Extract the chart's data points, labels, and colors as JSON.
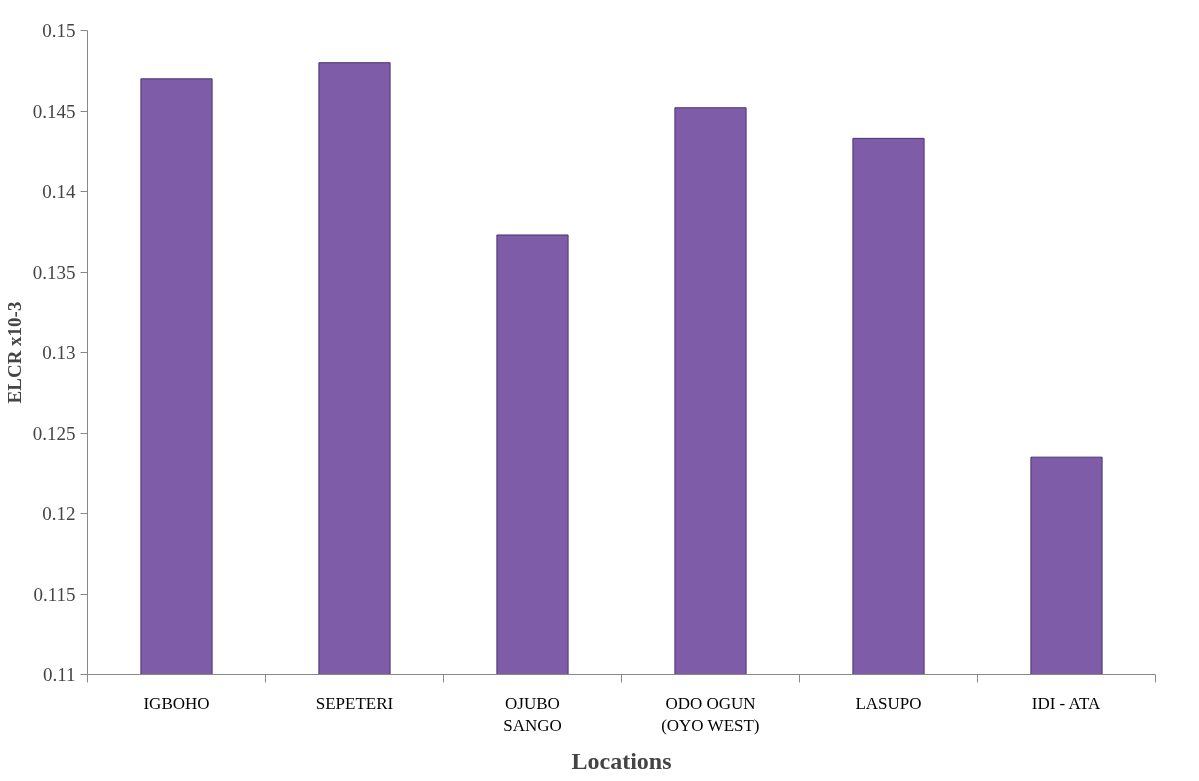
{
  "chart_data": {
    "type": "bar",
    "xlabel": "Locations",
    "ylabel": "ELCR x10-3",
    "categories": [
      "IGBOHO",
      "SEPETERI",
      "OJUBO\nSANGO",
      "ODO OGUN\n(OYO WEST)",
      "LASUPO",
      "IDI - ATA"
    ],
    "values": [
      0.147,
      0.148,
      0.1373,
      0.1452,
      0.1433,
      0.1235
    ],
    "color": "#7e5ca8",
    "ylim": [
      0.11,
      0.15
    ],
    "yticks": [
      0.11,
      0.115,
      0.12,
      0.125,
      0.13,
      0.135,
      0.14,
      0.145,
      0.15
    ],
    "grid": false
  }
}
